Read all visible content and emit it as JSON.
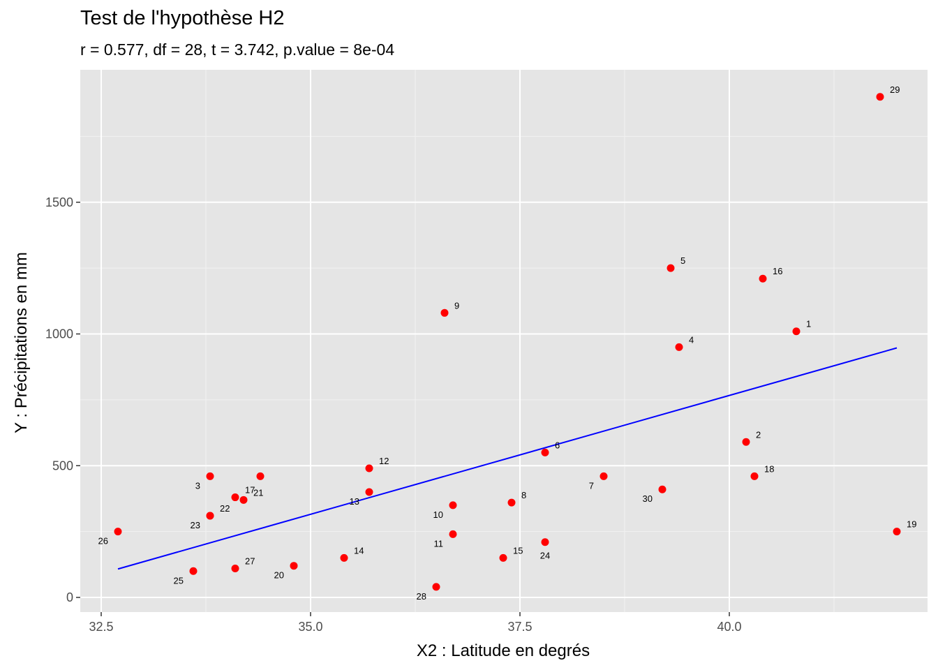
{
  "chart_data": {
    "type": "scatter",
    "title": "Test de l'hypothèse H2",
    "subtitle": "r = 0.577, df = 28, t = 3.742, p.value = 8e-04",
    "xlabel": "X2 : Latitude en degrés",
    "ylabel": "Y : Précipitations en mm",
    "xlim": [
      32.35,
      42.4
    ],
    "ylim": [
      -55,
      1980
    ],
    "x_ticks": [
      32.5,
      35.0,
      37.5,
      40.0
    ],
    "x_tick_labels": [
      "32.5",
      "35.0",
      "37.5",
      "40.0"
    ],
    "y_ticks": [
      0,
      500,
      1000,
      1500
    ],
    "y_tick_labels": [
      "0",
      "500",
      "1000",
      "1500"
    ],
    "grid": true,
    "point_color": "#ff0000",
    "line_color": "#0000ff",
    "points": [
      {
        "id": "1",
        "x": 40.8,
        "y": 1010,
        "ls": "r"
      },
      {
        "id": "2",
        "x": 40.2,
        "y": 590,
        "ls": "r"
      },
      {
        "id": "3",
        "x": 33.8,
        "y": 460,
        "ls": "l"
      },
      {
        "id": "4",
        "x": 39.4,
        "y": 950,
        "ls": "r"
      },
      {
        "id": "5",
        "x": 39.3,
        "y": 1250,
        "ls": "r"
      },
      {
        "id": "6",
        "x": 37.8,
        "y": 550,
        "ls": "r"
      },
      {
        "id": "7",
        "x": 38.5,
        "y": 460,
        "ls": "l"
      },
      {
        "id": "8",
        "x": 37.4,
        "y": 360,
        "ls": "r"
      },
      {
        "id": "9",
        "x": 36.6,
        "y": 1080,
        "ls": "r"
      },
      {
        "id": "10",
        "x": 36.7,
        "y": 350,
        "ls": "l"
      },
      {
        "id": "11",
        "x": 36.7,
        "y": 240,
        "ls": "l"
      },
      {
        "id": "12",
        "x": 35.7,
        "y": 490,
        "ls": "r"
      },
      {
        "id": "13",
        "x": 35.7,
        "y": 400,
        "ls": "l"
      },
      {
        "id": "14",
        "x": 35.4,
        "y": 150,
        "ls": "r"
      },
      {
        "id": "15",
        "x": 37.3,
        "y": 150,
        "ls": "r"
      },
      {
        "id": "16",
        "x": 40.4,
        "y": 1210,
        "ls": "r"
      },
      {
        "id": "17",
        "x": 34.1,
        "y": 380,
        "ls": "r"
      },
      {
        "id": "18",
        "x": 40.3,
        "y": 460,
        "ls": "r"
      },
      {
        "id": "19",
        "x": 42.0,
        "y": 250,
        "ls": "r"
      },
      {
        "id": "20",
        "x": 34.8,
        "y": 120,
        "ls": "l"
      },
      {
        "id": "21",
        "x": 34.2,
        "y": 370,
        "ls": "r"
      },
      {
        "id": "22",
        "x": 33.8,
        "y": 310,
        "ls": "r"
      },
      {
        "id": "23",
        "x": 33.8,
        "y": 310,
        "ls": "l"
      },
      {
        "id": "24",
        "x": 37.8,
        "y": 210,
        "ls": "d"
      },
      {
        "id": "25",
        "x": 33.6,
        "y": 100,
        "ls": "l"
      },
      {
        "id": "26",
        "x": 32.7,
        "y": 250,
        "ls": "l"
      },
      {
        "id": "27",
        "x": 34.1,
        "y": 110,
        "ls": "r"
      },
      {
        "id": "28",
        "x": 36.5,
        "y": 40,
        "ls": "l"
      },
      {
        "id": "29",
        "x": 41.8,
        "y": 1900,
        "ls": "r"
      },
      {
        "id": "30",
        "x": 39.2,
        "y": 410,
        "ls": "l"
      },
      {
        "id": "",
        "x": 34.4,
        "y": 460,
        "ls": "n"
      }
    ],
    "fit_line": {
      "x": [
        32.7,
        42.0
      ],
      "y": [
        108,
        947
      ]
    }
  }
}
